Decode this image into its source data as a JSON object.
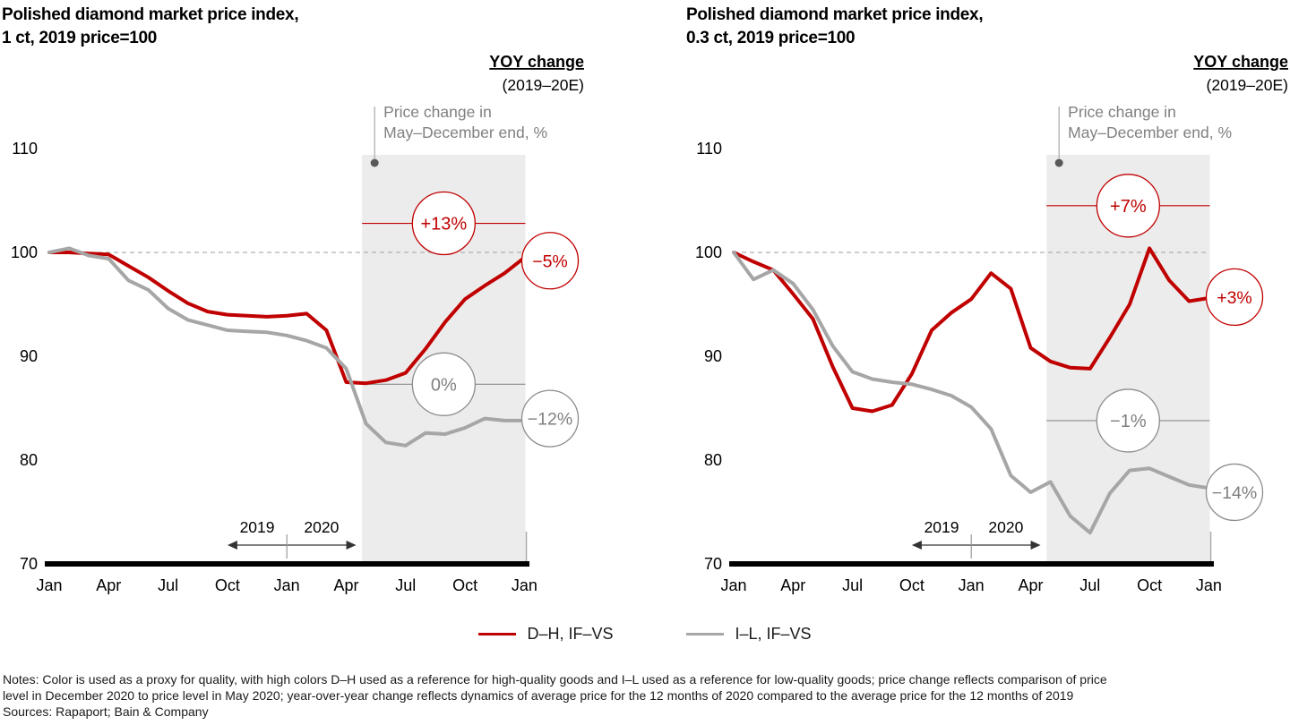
{
  "page": {
    "background": "#ffffff"
  },
  "legend": {
    "items": [
      {
        "label": "D–H, IF–VS",
        "color": "#c00000"
      },
      {
        "label": "I–L, IF–VS",
        "color": "#a6a6a6"
      }
    ]
  },
  "notes": {
    "line1": "Notes: Color is used as a proxy for quality, with high colors D–H used as a reference for high-quality goods and I–L used as a reference for low-quality goods; price change reflects comparison of price",
    "line2": "level in December 2020 to price level in May 2020; year-over-year change reflects dynamics of average price for the 12 months of 2020 compared to the average price for the 12 months of 2019",
    "sources": "Sources: Rapaport; Bain & Company"
  },
  "chart_data": [
    {
      "type": "line",
      "title_line1": "Polished diamond market price index,",
      "title_line2": "1 ct, 2019 price=100",
      "yoy_header": {
        "line1": "YOY change",
        "line2": "(2019–20E)"
      },
      "band_label": {
        "line1": "Price change in",
        "line2": "May–December end, %"
      },
      "x_start": "Jan 2019",
      "x_end": "Jan 2021",
      "x_interval": "monthly",
      "months": [
        "Jan 2019",
        "Feb 2019",
        "Mar 2019",
        "Apr 2019",
        "May 2019",
        "Jun 2019",
        "Jul 2019",
        "Aug 2019",
        "Sep 2019",
        "Oct 2019",
        "Nov 2019",
        "Dec 2019",
        "Jan 2020",
        "Feb 2020",
        "Mar 2020",
        "Apr 2020",
        "May 2020",
        "Jun 2020",
        "Jul 2020",
        "Aug 2020",
        "Sep 2020",
        "Oct 2020",
        "Nov 2020",
        "Dec 2020",
        "Jan 2021"
      ],
      "x_tick_labels": [
        "Jan",
        "Apr",
        "Jul",
        "Oct",
        "Jan",
        "Apr",
        "Jul",
        "Oct",
        "Jan"
      ],
      "ylim": [
        70,
        110
      ],
      "y_ticks": [
        110,
        100,
        90,
        80,
        70
      ],
      "baseline_value": 100,
      "series": [
        {
          "name": "D–H, IF–VS",
          "color": "#c00000",
          "values": [
            100,
            100,
            99.9,
            99.8,
            98.7,
            97.6,
            96.3,
            95.1,
            94.3,
            94.0,
            93.9,
            93.8,
            93.9,
            94.1,
            92.5,
            87.5,
            87.4,
            87.7,
            88.4,
            90.7,
            93.3,
            95.5,
            96.8,
            98.0,
            99.5
          ]
        },
        {
          "name": "I–L, IF–VS",
          "color": "#a6a6a6",
          "values": [
            100,
            100.4,
            99.7,
            99.4,
            97.3,
            96.4,
            94.6,
            93.5,
            93.0,
            92.5,
            92.4,
            92.3,
            92.0,
            91.5,
            90.8,
            88.8,
            83.5,
            81.7,
            81.4,
            82.6,
            82.5,
            83.1,
            84.0,
            83.8,
            83.8
          ]
        }
      ],
      "shaded_region": {
        "start_month": 15.8,
        "end_month": 24.05
      },
      "annotations_mid": [
        {
          "text": "+13%",
          "value": 102.8,
          "color": "#c00000"
        },
        {
          "text": "0%",
          "value": 87.3,
          "color": "#8c8c8c"
        }
      ],
      "annotations_end": [
        {
          "text": "−5%",
          "value": 99.2,
          "color": "#c00000"
        },
        {
          "text": "−12%",
          "value": 84.0,
          "color": "#8c8c8c"
        }
      ],
      "year_arrow": {
        "left_label": "2019",
        "right_label": "2020",
        "start_month": 9.0,
        "tick_month": 12,
        "end_month": 15.5
      },
      "end_tick_month": 24.05,
      "header_right_x": 652
    },
    {
      "type": "line",
      "title_line1": "Polished diamond market price index,",
      "title_line2": "0.3 ct, 2019 price=100",
      "yoy_header": {
        "line1": "YOY change",
        "line2": "(2019–20E)"
      },
      "band_label": {
        "line1": "Price change in",
        "line2": "May–December end, %"
      },
      "x_start": "Jan 2019",
      "x_end": "Jan 2021",
      "x_interval": "monthly",
      "months": [
        "Jan 2019",
        "Feb 2019",
        "Mar 2019",
        "Apr 2019",
        "May 2019",
        "Jun 2019",
        "Jul 2019",
        "Aug 2019",
        "Sep 2019",
        "Oct 2019",
        "Nov 2019",
        "Dec 2019",
        "Jan 2020",
        "Feb 2020",
        "Mar 2020",
        "Apr 2020",
        "May 2020",
        "Jun 2020",
        "Jul 2020",
        "Aug 2020",
        "Sep 2020",
        "Oct 2020",
        "Nov 2020",
        "Dec 2020",
        "Jan 2021"
      ],
      "x_tick_labels": [
        "Jan",
        "Apr",
        "Jul",
        "Oct",
        "Jan",
        "Apr",
        "Jul",
        "Oct",
        "Jan"
      ],
      "ylim": [
        70,
        110
      ],
      "y_ticks": [
        110,
        100,
        90,
        80,
        70
      ],
      "baseline_value": 100,
      "series": [
        {
          "name": "D–H, IF–VS",
          "color": "#c00000",
          "values": [
            100,
            99.1,
            98.3,
            96.0,
            93.6,
            89.0,
            85.0,
            84.7,
            85.3,
            88.3,
            92.5,
            94.2,
            95.5,
            98.0,
            96.5,
            90.8,
            89.5,
            88.9,
            88.8,
            91.8,
            95.0,
            100.4,
            97.3,
            95.3,
            95.6
          ]
        },
        {
          "name": "I–L, IF–VS",
          "color": "#a6a6a6",
          "values": [
            100,
            97.4,
            98.3,
            97.0,
            94.5,
            91.0,
            88.5,
            87.8,
            87.5,
            87.3,
            86.8,
            86.2,
            85.1,
            83.0,
            78.5,
            76.9,
            77.9,
            74.6,
            73.0,
            76.8,
            79.0,
            79.2,
            78.4,
            77.6,
            77.3
          ]
        }
      ],
      "shaded_region": {
        "start_month": 15.8,
        "end_month": 24.05
      },
      "annotations_mid": [
        {
          "text": "+7%",
          "value": 104.5,
          "color": "#c00000"
        },
        {
          "text": "−1%",
          "value": 83.8,
          "color": "#8c8c8c"
        }
      ],
      "annotations_end": [
        {
          "text": "+3%",
          "value": 95.7,
          "color": "#c00000"
        },
        {
          "text": "−14%",
          "value": 76.9,
          "color": "#8c8c8c"
        }
      ],
      "year_arrow": {
        "left_label": "2019",
        "right_label": "2020",
        "start_month": 9.0,
        "tick_month": 12,
        "end_month": 15.5
      },
      "end_tick_month": 24.05,
      "header_right_x": 674
    }
  ]
}
